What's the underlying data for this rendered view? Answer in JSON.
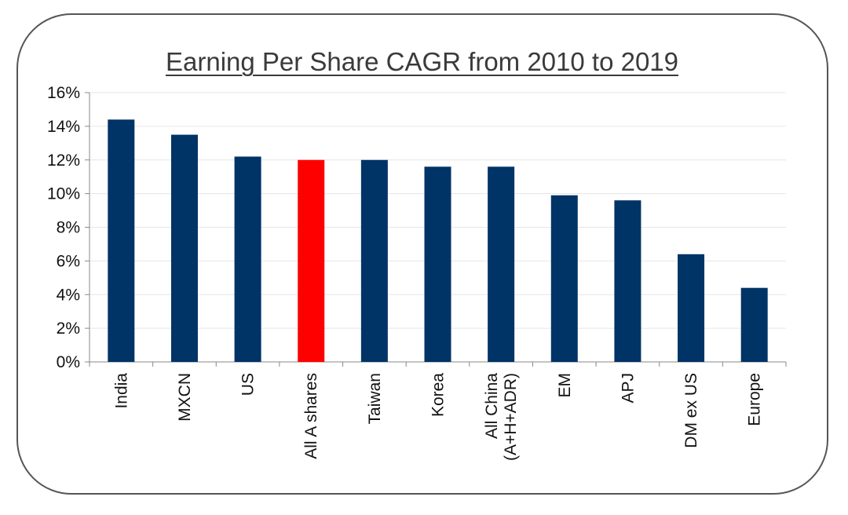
{
  "chart_data": {
    "type": "bar",
    "title": "Earning Per Share CAGR from 2010 to 2019",
    "xlabel": "",
    "ylabel": "",
    "categories": [
      [
        "India"
      ],
      [
        "MXCN"
      ],
      [
        "US"
      ],
      [
        "All A shares"
      ],
      [
        "Taiwan"
      ],
      [
        "Korea"
      ],
      [
        "All China",
        "(A+H+ADR)"
      ],
      [
        "EM"
      ],
      [
        "APJ"
      ],
      [
        "DM ex US"
      ],
      [
        "Europe"
      ]
    ],
    "values": [
      14.4,
      13.5,
      12.2,
      12.0,
      12.0,
      11.6,
      11.6,
      9.9,
      9.6,
      6.4,
      4.4
    ],
    "ylim": [
      0,
      16
    ],
    "yticks": [
      "0%",
      "2%",
      "4%",
      "6%",
      "8%",
      "10%",
      "12%",
      "14%",
      "16%"
    ],
    "bar_color": "#003366",
    "highlight_color": "#ff0000",
    "highlight_category": "All A shares",
    "grid": true,
    "legend": "none"
  }
}
